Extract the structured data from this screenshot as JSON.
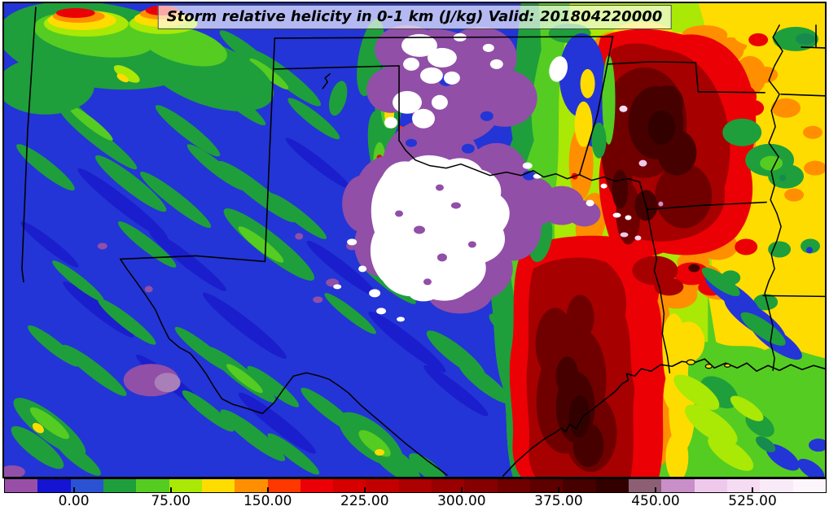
{
  "title": {
    "text": "Storm relative helicity in 0-1 km (J/kg) Valid: 201804220000"
  },
  "units": "J/kg",
  "colorbar": {
    "tick_labels": [
      "0.00",
      "75.00",
      "150.00",
      "225.00",
      "300.00",
      "375.00",
      "450.00",
      "525.00"
    ],
    "tick_values": [
      0,
      75,
      150,
      225,
      300,
      375,
      450,
      525
    ],
    "band_interval": 25,
    "value_min": -50,
    "value_max": 575,
    "border_color": "#000000",
    "segment_colors": [
      "#994FA8",
      "#1414D2",
      "#2A52D2",
      "#1F9E3C",
      "#55CC22",
      "#AAE805",
      "#FFDC00",
      "#FF8F00",
      "#FF3800",
      "#EB0005",
      "#D60000",
      "#C20000",
      "#AD0000",
      "#990000",
      "#850000",
      "#700000",
      "#5C0000",
      "#470000",
      "#330000",
      "#8C5F74",
      "#C98FC9",
      "#EFC9EC",
      "#F5DCF3",
      "#F9EAF8",
      "#FDF5FC"
    ]
  },
  "chart_data": {
    "type": "heatmap",
    "title": "Storm relative helicity in 0-1 km (J/kg) Valid: 201804220000",
    "valid_time": "201804220000",
    "variable": "Storm relative helicity in 0-1 km",
    "units": "J/kg",
    "colorbar_tick_labels": [
      "0.00",
      "75.00",
      "150.00",
      "225.00",
      "300.00",
      "375.00",
      "450.00",
      "525.00"
    ],
    "colorbar_band_interval": 25,
    "palette": [
      "#994FA8",
      "#1414D2",
      "#2A52D2",
      "#1F9E3C",
      "#55CC22",
      "#AAE805",
      "#FFDC00",
      "#FF8F00",
      "#FF3800",
      "#EB0005",
      "#D60000",
      "#C20000",
      "#AD0000",
      "#990000",
      "#850000",
      "#700000",
      "#5C0000",
      "#470000",
      "#330000",
      "#8C5F74",
      "#C98FC9",
      "#EFC9EC",
      "#F5DCF3",
      "#F9EAF8",
      "#FDF5FC"
    ],
    "field_summary": [
      "west two-thirds of domain: low values 0-25 (blue) with diagonal streaks of 25-75 (greens), scattered 75-200 spots (yellow/orange/red) in the northwest",
      "north-center: large pocket of negative values, purple band (-50..-25) surrounding an off-scale white area",
      "east third: broad maximum 150-400+ (red to very dark red) over eastern Oklahoma / Arkansas and along the upper Texas coast",
      "isolated extreme specks above 400 (mauve/pink/white) embedded in the dark red maximum",
      "far east column: 75-175 (yellow/orange) with green patches along the Mississippi River"
    ],
    "map_overlays": [
      "state borders",
      "rivers",
      "Gulf coastline",
      "small lakes"
    ],
    "legend_position": "bottom horizontal colorbar"
  },
  "field_palette": {
    "base_blue": "#2335D6",
    "dark_blue_streak": "#1A1ECC",
    "dark_green": "#1F9E3C",
    "bright_green": "#55CC22",
    "teal_green": "#178A50",
    "chartreuse": "#AAE805",
    "yellow": "#FFDC00",
    "orange": "#FF8F00",
    "red": "#EB0005",
    "dark_red": "#A60000",
    "deep_red": "#700000",
    "darkest_red": "#470000",
    "near_black_red": "#330000",
    "purple_negative": "#914FA8",
    "white_offscale": "#FFFFFF",
    "mauve_extreme": "#8C5F74",
    "pink_extreme": "#EFC9EC",
    "border_black": "#000000"
  }
}
